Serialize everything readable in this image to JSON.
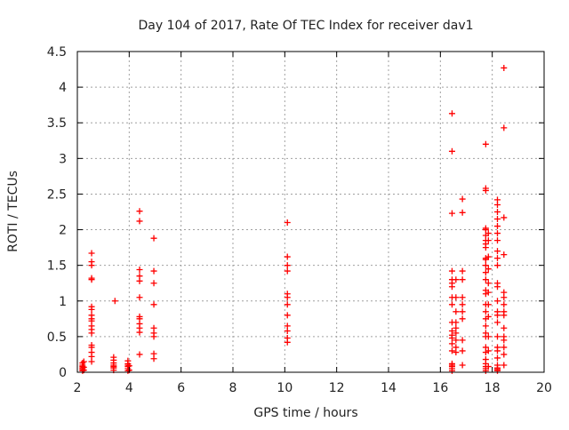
{
  "chart_data": {
    "type": "scatter",
    "title": "Day 104 of 2017, Rate Of TEC Index for receiver dav1",
    "xlabel": "GPS time / hours",
    "ylabel": "ROTI / TECUs",
    "xlim": [
      2,
      20
    ],
    "ylim": [
      0,
      4.5
    ],
    "xticks": [
      "2",
      "4",
      "6",
      "8",
      "10",
      "12",
      "14",
      "16",
      "18",
      "20"
    ],
    "yticks": [
      "0",
      "0.5",
      "1",
      "1.5",
      "2",
      "2.5",
      "3",
      "3.5",
      "4",
      "4.5"
    ],
    "grid": true,
    "marker": "plus",
    "colors": {
      "points": "#ff0000",
      "grid": "#a0a0a0",
      "axes": "#000000"
    },
    "series": [
      {
        "points": [
          [
            2.2,
            0.02
          ],
          [
            2.2,
            0.04
          ],
          [
            2.2,
            0.06
          ],
          [
            2.2,
            0.08
          ],
          [
            2.2,
            0.1
          ],
          [
            2.2,
            0.13
          ],
          [
            2.25,
            0.03
          ],
          [
            2.25,
            0.07
          ],
          [
            2.25,
            0.15
          ],
          [
            2.55,
            0.15
          ],
          [
            2.55,
            0.22
          ],
          [
            2.55,
            0.28
          ],
          [
            2.55,
            0.35
          ],
          [
            2.55,
            0.38
          ],
          [
            2.55,
            0.55
          ],
          [
            2.55,
            0.6
          ],
          [
            2.55,
            0.65
          ],
          [
            2.55,
            0.72
          ],
          [
            2.55,
            0.75
          ],
          [
            2.55,
            0.8
          ],
          [
            2.55,
            0.88
          ],
          [
            2.55,
            0.92
          ],
          [
            2.55,
            1.3
          ],
          [
            2.55,
            1.32
          ],
          [
            2.55,
            1.5
          ],
          [
            2.55,
            1.55
          ],
          [
            2.55,
            1.67
          ],
          [
            3.4,
            0.03
          ],
          [
            3.4,
            0.06
          ],
          [
            3.4,
            0.08
          ],
          [
            3.4,
            0.1
          ],
          [
            3.4,
            0.13
          ],
          [
            3.4,
            0.17
          ],
          [
            3.4,
            0.21
          ],
          [
            3.45,
            1.0
          ],
          [
            3.95,
            0.02
          ],
          [
            3.95,
            0.05
          ],
          [
            3.95,
            0.08
          ],
          [
            3.95,
            0.1
          ],
          [
            3.95,
            0.12
          ],
          [
            3.95,
            0.16
          ],
          [
            4.0,
            0.03
          ],
          [
            4.0,
            0.09
          ],
          [
            4.4,
            0.25
          ],
          [
            4.4,
            0.56
          ],
          [
            4.4,
            0.62
          ],
          [
            4.4,
            0.68
          ],
          [
            4.4,
            0.75
          ],
          [
            4.4,
            0.78
          ],
          [
            4.4,
            1.05
          ],
          [
            4.4,
            1.28
          ],
          [
            4.4,
            1.35
          ],
          [
            4.4,
            1.44
          ],
          [
            4.4,
            2.12
          ],
          [
            4.4,
            2.26
          ],
          [
            4.95,
            0.19
          ],
          [
            4.95,
            0.26
          ],
          [
            4.95,
            0.5
          ],
          [
            4.95,
            0.55
          ],
          [
            4.95,
            0.62
          ],
          [
            4.95,
            0.95
          ],
          [
            4.95,
            1.25
          ],
          [
            4.95,
            1.42
          ],
          [
            4.95,
            1.88
          ],
          [
            10.1,
            0.42
          ],
          [
            10.1,
            0.48
          ],
          [
            10.1,
            0.58
          ],
          [
            10.1,
            0.65
          ],
          [
            10.1,
            0.8
          ],
          [
            10.1,
            0.95
          ],
          [
            10.1,
            1.05
          ],
          [
            10.1,
            1.1
          ],
          [
            10.1,
            1.42
          ],
          [
            10.1,
            1.5
          ],
          [
            10.1,
            1.62
          ],
          [
            10.1,
            2.1
          ],
          [
            16.45,
            0.02
          ],
          [
            16.45,
            0.05
          ],
          [
            16.45,
            0.08
          ],
          [
            16.45,
            0.1
          ],
          [
            16.45,
            0.12
          ],
          [
            16.45,
            0.3
          ],
          [
            16.45,
            0.4
          ],
          [
            16.45,
            0.48
          ],
          [
            16.45,
            0.52
          ],
          [
            16.45,
            0.58
          ],
          [
            16.45,
            0.7
          ],
          [
            16.45,
            0.95
          ],
          [
            16.45,
            1.05
          ],
          [
            16.45,
            1.2
          ],
          [
            16.45,
            1.25
          ],
          [
            16.45,
            1.3
          ],
          [
            16.45,
            1.42
          ],
          [
            16.45,
            2.23
          ],
          [
            16.45,
            3.1
          ],
          [
            16.45,
            3.63
          ],
          [
            16.6,
            0.28
          ],
          [
            16.6,
            0.35
          ],
          [
            16.6,
            0.45
          ],
          [
            16.6,
            0.55
          ],
          [
            16.6,
            0.62
          ],
          [
            16.6,
            0.7
          ],
          [
            16.6,
            0.85
          ],
          [
            16.6,
            1.05
          ],
          [
            16.6,
            1.3
          ],
          [
            16.85,
            0.1
          ],
          [
            16.85,
            0.3
          ],
          [
            16.85,
            0.45
          ],
          [
            16.85,
            0.75
          ],
          [
            16.85,
            0.85
          ],
          [
            16.85,
            0.95
          ],
          [
            16.85,
            1.05
          ],
          [
            16.85,
            1.3
          ],
          [
            16.85,
            1.42
          ],
          [
            16.85,
            2.24
          ],
          [
            16.85,
            2.43
          ],
          [
            17.75,
            0.02
          ],
          [
            17.75,
            0.05
          ],
          [
            17.75,
            0.08
          ],
          [
            17.75,
            0.12
          ],
          [
            17.75,
            0.18
          ],
          [
            17.75,
            0.28
          ],
          [
            17.75,
            0.35
          ],
          [
            17.75,
            0.5
          ],
          [
            17.75,
            0.55
          ],
          [
            17.75,
            0.65
          ],
          [
            17.75,
            0.75
          ],
          [
            17.75,
            0.85
          ],
          [
            17.75,
            0.95
          ],
          [
            17.75,
            1.1
          ],
          [
            17.75,
            1.15
          ],
          [
            17.75,
            1.3
          ],
          [
            17.75,
            1.4
          ],
          [
            17.75,
            1.5
          ],
          [
            17.75,
            1.58
          ],
          [
            17.75,
            1.6
          ],
          [
            17.75,
            1.75
          ],
          [
            17.75,
            1.8
          ],
          [
            17.75,
            1.85
          ],
          [
            17.75,
            1.92
          ],
          [
            17.75,
            2.0
          ],
          [
            17.75,
            2.02
          ],
          [
            17.75,
            2.55
          ],
          [
            17.75,
            2.58
          ],
          [
            17.75,
            3.2
          ],
          [
            17.85,
            0.08
          ],
          [
            17.85,
            0.3
          ],
          [
            17.85,
            0.5
          ],
          [
            17.85,
            0.78
          ],
          [
            17.85,
            0.95
          ],
          [
            17.85,
            1.12
          ],
          [
            17.85,
            1.25
          ],
          [
            17.85,
            1.45
          ],
          [
            17.85,
            1.62
          ],
          [
            17.85,
            1.85
          ],
          [
            17.85,
            1.95
          ],
          [
            18.2,
            0.02
          ],
          [
            18.2,
            0.04
          ],
          [
            18.2,
            0.06
          ],
          [
            18.2,
            0.1
          ],
          [
            18.2,
            0.2
          ],
          [
            18.2,
            0.3
          ],
          [
            18.2,
            0.35
          ],
          [
            18.2,
            0.5
          ],
          [
            18.2,
            0.7
          ],
          [
            18.2,
            0.8
          ],
          [
            18.2,
            0.85
          ],
          [
            18.2,
            1.0
          ],
          [
            18.2,
            1.2
          ],
          [
            18.2,
            1.25
          ],
          [
            18.2,
            1.5
          ],
          [
            18.2,
            1.6
          ],
          [
            18.2,
            1.7
          ],
          [
            18.2,
            1.85
          ],
          [
            18.2,
            1.95
          ],
          [
            18.2,
            2.05
          ],
          [
            18.2,
            2.15
          ],
          [
            18.2,
            2.25
          ],
          [
            18.2,
            2.35
          ],
          [
            18.2,
            2.42
          ],
          [
            18.45,
            0.1
          ],
          [
            18.45,
            0.25
          ],
          [
            18.45,
            0.35
          ],
          [
            18.45,
            0.45
          ],
          [
            18.45,
            0.5
          ],
          [
            18.45,
            0.62
          ],
          [
            18.45,
            0.8
          ],
          [
            18.45,
            0.85
          ],
          [
            18.45,
            0.95
          ],
          [
            18.45,
            1.05
          ],
          [
            18.45,
            1.12
          ],
          [
            18.45,
            1.65
          ],
          [
            18.45,
            2.17
          ],
          [
            18.45,
            3.43
          ],
          [
            18.45,
            4.27
          ]
        ]
      }
    ]
  }
}
